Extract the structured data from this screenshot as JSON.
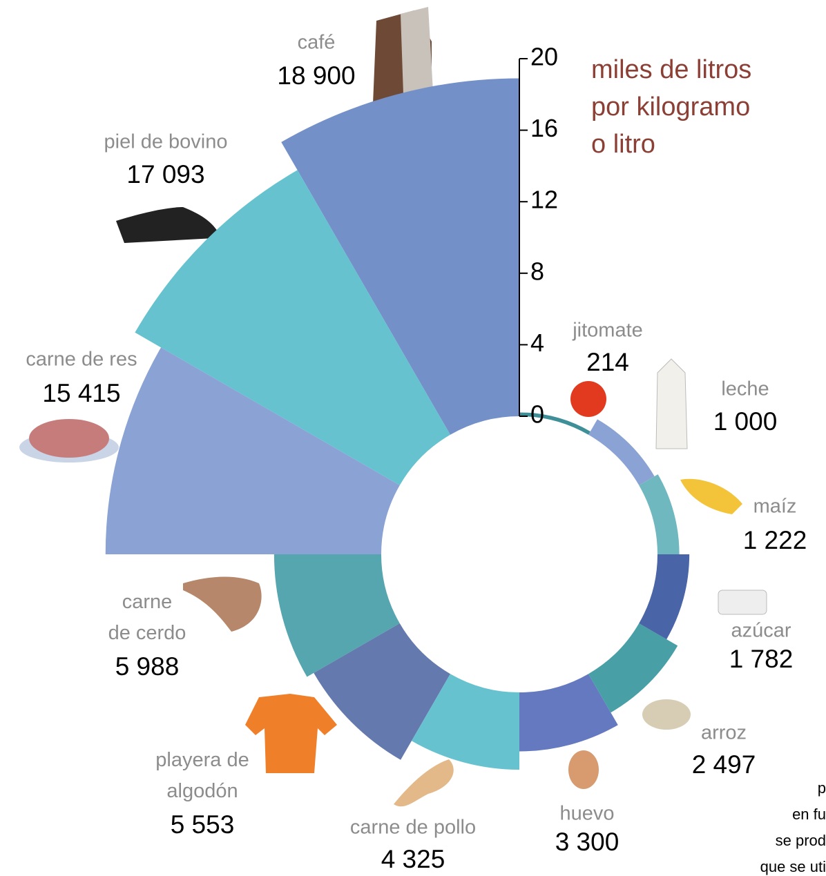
{
  "chart_data": {
    "type": "polar-bar",
    "unit_label": [
      "miles de litros",
      "por kilogramo",
      "o litro"
    ],
    "categories": [
      "café",
      "piel de bovino",
      "carne de res",
      "carne de cerdo",
      "playera de algodón",
      "carne de pollo",
      "huevo",
      "arroz",
      "azúcar",
      "maíz",
      "leche",
      "jitomate"
    ],
    "values": [
      18.9,
      17.093,
      15.415,
      5.988,
      5.553,
      4.325,
      3.3,
      2.497,
      1.782,
      1.222,
      1.0,
      0.214
    ],
    "value_labels": [
      "18 900",
      "17 093",
      "15 415",
      "5 988",
      "5 553",
      "4 325",
      "3 300",
      "2 497",
      "1 782",
      "1 222",
      "1 000",
      "214"
    ],
    "colors": [
      "#7490c8",
      "#66c2cf",
      "#8aa3d4",
      "#56a6b0",
      "#6479ad",
      "#66c2cf",
      "#6479bf",
      "#48a0a6",
      "#4a64a8",
      "#6fb8c0",
      "#8aa3d4",
      "#3f8f98"
    ],
    "ylim": [
      0,
      20
    ],
    "yticks": [
      0,
      4,
      8,
      12,
      16,
      20
    ],
    "notes": [
      "p",
      "en fu",
      "se prod",
      "que se uti"
    ]
  }
}
